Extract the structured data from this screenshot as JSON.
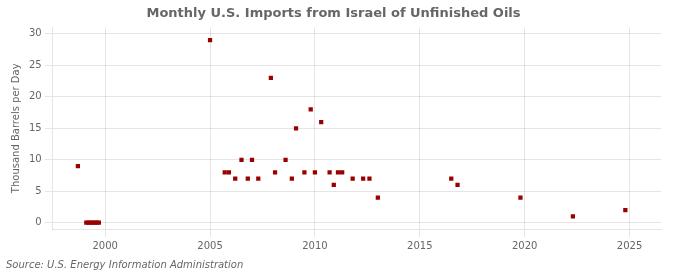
{
  "chart_data": {
    "type": "scatter",
    "title": "Monthly U.S. Imports from Israel of Unfinished Oils",
    "ylabel": "Thousand Barrels per Day",
    "annotations": [
      "Source: U.S. Energy Information Administration"
    ],
    "x": [
      1998.7,
      1999.1,
      1999.2,
      1999.3,
      1999.4,
      1999.5,
      1999.6,
      1999.7,
      2005.0,
      2005.7,
      2005.9,
      2006.2,
      2006.5,
      2006.8,
      2007.0,
      2007.3,
      2007.9,
      2008.1,
      2008.6,
      2008.9,
      2009.1,
      2009.5,
      2009.8,
      2010.0,
      2010.3,
      2010.7,
      2010.9,
      2011.1,
      2011.3,
      2011.8,
      2012.3,
      2012.6,
      2013.0,
      2016.5,
      2016.8,
      2019.8,
      2022.3,
      2024.8
    ],
    "values": [
      9,
      0,
      0,
      0,
      0,
      0,
      0,
      0,
      29,
      8,
      8,
      7,
      10,
      7,
      10,
      7,
      23,
      8,
      10,
      7,
      15,
      8,
      18,
      8,
      16,
      8,
      6,
      8,
      8,
      7,
      7,
      7,
      4,
      7,
      6,
      4,
      1,
      2
    ],
    "color": "#990000",
    "marker": "square",
    "xlim": [
      1997.5,
      2026.5
    ],
    "xticks": [
      2000,
      2005,
      2010,
      2015,
      2020,
      2025
    ],
    "ylim": [
      -1.0,
      31
    ],
    "yticks": [
      0,
      5,
      10,
      15,
      20,
      25,
      30
    ],
    "grid": true
  }
}
